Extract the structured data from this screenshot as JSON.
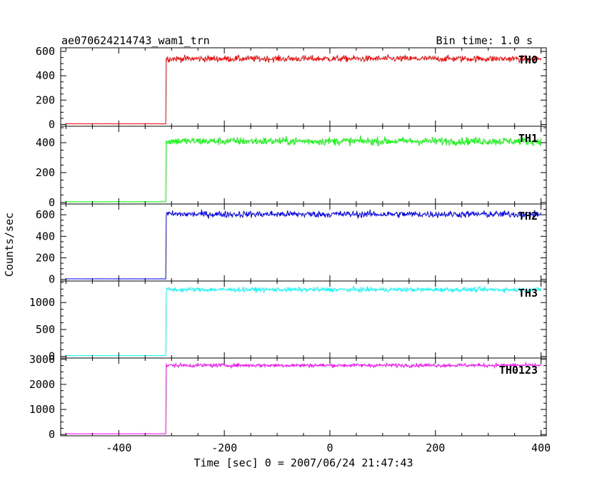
{
  "chart_data": {
    "type": "line",
    "title": "ae070624214743_wam1_trn",
    "subtitle": "Bin time: 1.0 s",
    "xlabel": "Time [sec] 0 = 2007/06/24 21:47:43",
    "ylabel": "Counts/sec",
    "xlim": [
      -510,
      410
    ],
    "xticks": [
      -400,
      -200,
      0,
      200,
      400
    ],
    "x_start": -500,
    "x_end": 400,
    "panels": [
      {
        "name": "TH0",
        "color": "#ff0000",
        "ylim": [
          -15,
          630
        ],
        "yticks": [
          0,
          200,
          400,
          600
        ],
        "onset": -310,
        "pre_level": 5,
        "post_level": 540,
        "noise": 25
      },
      {
        "name": "TH1",
        "color": "#00ff00",
        "ylim": [
          -10,
          510
        ],
        "yticks": [
          0,
          200,
          400
        ],
        "onset": -310,
        "pre_level": 5,
        "post_level": 410,
        "noise": 25
      },
      {
        "name": "TH2",
        "color": "#0000ff",
        "ylim": [
          -15,
          700
        ],
        "yticks": [
          0,
          200,
          400,
          600
        ],
        "onset": -310,
        "pre_level": 5,
        "post_level": 605,
        "noise": 30
      },
      {
        "name": "TH3",
        "color": "#00ffff",
        "ylim": [
          -30,
          1400
        ],
        "yticks": [
          0,
          500,
          1000
        ],
        "onset": -310,
        "pre_level": 15,
        "post_level": 1240,
        "noise": 40
      },
      {
        "name": "TH0123",
        "color": "#ff00ff",
        "ylim": [
          -50,
          3050
        ],
        "yticks": [
          0,
          1000,
          2000,
          3000
        ],
        "onset": -310,
        "pre_level": 30,
        "post_level": 2760,
        "noise": 70
      }
    ]
  }
}
